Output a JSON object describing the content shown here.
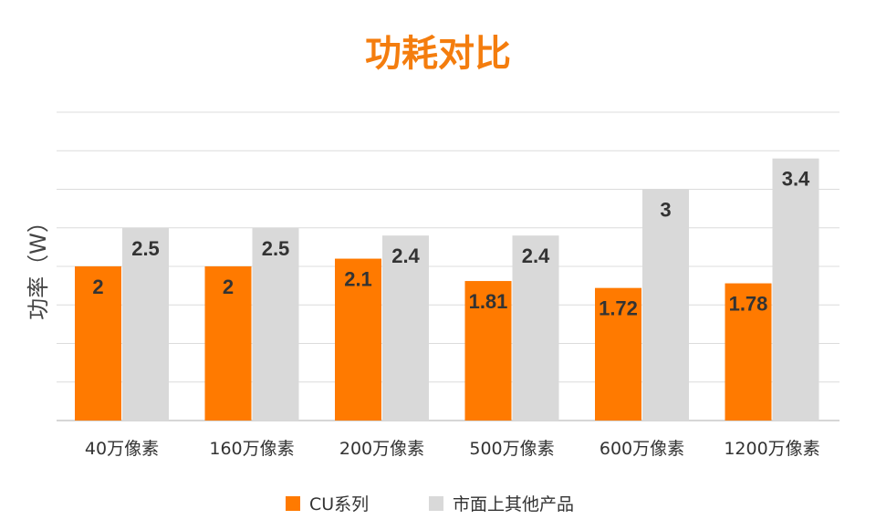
{
  "chart_data": {
    "type": "bar",
    "title": "功耗对比",
    "ylabel": "功率（W）",
    "xlabel": "",
    "ylim": [
      0,
      4
    ],
    "grid": true,
    "legend_position": "bottom",
    "categories": [
      "40万像素",
      "160万像素",
      "200万像素",
      "500万像素",
      "600万像素",
      "1200万像素"
    ],
    "series": [
      {
        "name": "CU系列",
        "color": "#ff7a00",
        "values": [
          2,
          2,
          2.1,
          1.81,
          1.72,
          1.78
        ],
        "labels": [
          "2",
          "2",
          "2.1",
          "1.81",
          "1.72",
          "1.78"
        ]
      },
      {
        "name": "市面上其他产品",
        "color": "#d9d9d9",
        "values": [
          2.5,
          2.5,
          2.4,
          2.4,
          3,
          3.4
        ],
        "labels": [
          "2.5",
          "2.5",
          "2.4",
          "2.4",
          "3",
          "3.4"
        ]
      }
    ]
  },
  "colors": {
    "title": "#f47d0e",
    "grid": "#dcdcdc",
    "axis": "#c8c8c8"
  }
}
